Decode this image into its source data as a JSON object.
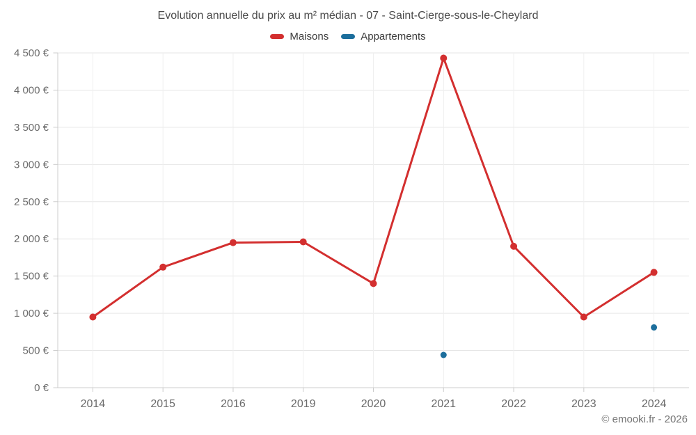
{
  "title": "Evolution annuelle du prix au m² médian - 07 - Saint-Cierge-sous-le-Cheylard",
  "copyright": "© emooki.fr - 2026",
  "colors": {
    "maisons": "#d32f2f",
    "appartements": "#1c6e9c",
    "grid_horizontal": "#e6e6e6",
    "grid_vertical": "#efefef",
    "axis_line": "#cccccc",
    "tick_label": "#6b6b6b"
  },
  "chart_data": {
    "type": "line",
    "title": "Evolution annuelle du prix au m² médian - 07 - Saint-Cierge-sous-le-Cheylard",
    "categories": [
      "2014",
      "2015",
      "2016",
      "2019",
      "2020",
      "2021",
      "2022",
      "2023",
      "2024"
    ],
    "series": [
      {
        "name": "Maisons",
        "color": "#d32f2f",
        "style": "line+markers",
        "values": [
          950,
          1620,
          1950,
          1960,
          1400,
          4430,
          1900,
          950,
          1550
        ]
      },
      {
        "name": "Appartements",
        "color": "#1c6e9c",
        "style": "markers",
        "values": [
          null,
          null,
          null,
          null,
          null,
          440,
          null,
          null,
          810
        ]
      }
    ],
    "ylim": [
      0,
      4500
    ],
    "ytick_step": 500,
    "ytick_labels": [
      "0 €",
      "500 €",
      "1 000 €",
      "1 500 €",
      "2 000 €",
      "2 500 €",
      "3 000 €",
      "3 500 €",
      "4 000 €",
      "4 500 €"
    ],
    "xlabel": "",
    "ylabel": "",
    "grid": true,
    "legend_position": "top"
  }
}
